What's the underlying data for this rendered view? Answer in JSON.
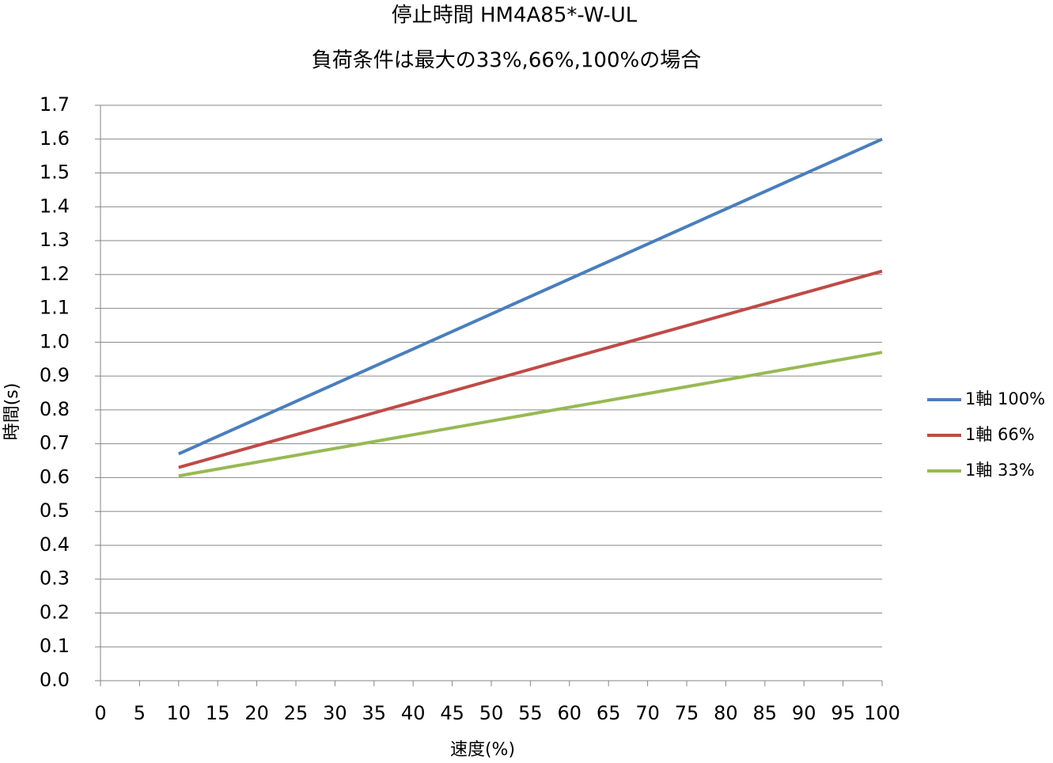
{
  "chart_data": {
    "type": "line",
    "title": "停止時間 HM4A85*-W-UL",
    "subtitle": "負荷条件は最大の33%,66%,100%の場合",
    "x_label": "速度(%)",
    "y_label": "時間(s)",
    "x": [
      10,
      100
    ],
    "series": [
      {
        "name": "1軸 100%",
        "color": "#4a7ebb",
        "values": [
          0.67,
          1.6
        ]
      },
      {
        "name": "1軸 66%",
        "color": "#be4b48",
        "values": [
          0.63,
          1.21
        ]
      },
      {
        "name": "1軸 33%",
        "color": "#98b954",
        "values": [
          0.605,
          0.97
        ]
      }
    ],
    "xlim": [
      0,
      100
    ],
    "xticks": [
      0,
      5,
      10,
      15,
      20,
      25,
      30,
      35,
      40,
      45,
      50,
      55,
      60,
      65,
      70,
      75,
      80,
      85,
      90,
      95,
      100
    ],
    "ylim": [
      0,
      1.7
    ],
    "yticks": [
      {
        "value": 0,
        "label": "0.0"
      },
      0.1,
      0.2,
      0.3,
      0.4,
      0.5,
      0.6,
      0.7,
      0.8,
      0.9,
      {
        "value": 1,
        "label": "1.0"
      },
      1.1,
      1.2,
      1.3,
      1.4,
      1.5,
      1.6,
      1.7
    ],
    "grid": true,
    "legend": "right"
  }
}
